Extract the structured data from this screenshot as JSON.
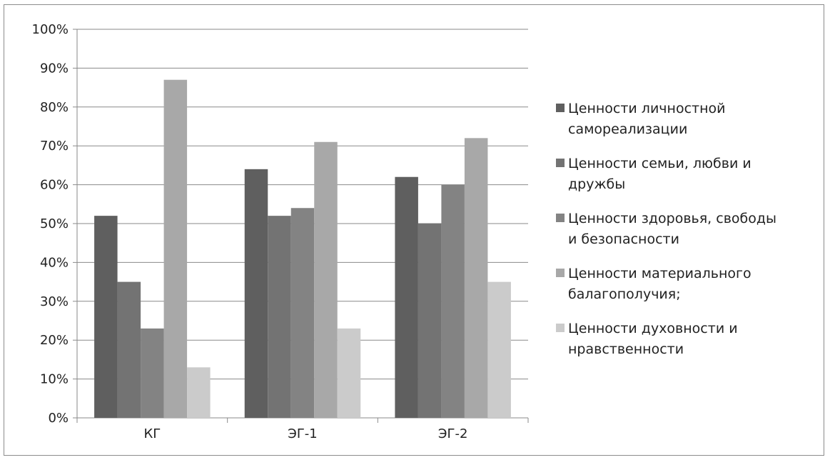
{
  "chart_data": {
    "type": "bar",
    "title": "",
    "xlabel": "",
    "ylabel": "",
    "ylim": [
      0,
      100
    ],
    "y_ticks": [
      "0%",
      "10%",
      "20%",
      "30%",
      "40%",
      "50%",
      "60%",
      "70%",
      "80%",
      "90%",
      "100%"
    ],
    "categories": [
      "КГ",
      "ЭГ-1",
      "ЭГ-2"
    ],
    "grid": true,
    "legend_position": "right",
    "series": [
      {
        "name": "Ценности личностной самореализации",
        "name_lines": [
          "Ценности личностной",
          "самореализации"
        ],
        "color": "#5f5f5f",
        "values": [
          52,
          64,
          62
        ]
      },
      {
        "name": "Ценности семьи, любви и дружбы",
        "name_lines": [
          "Ценности семьи, любви и",
          "дружбы"
        ],
        "color": "#737373",
        "values": [
          35,
          52,
          50
        ]
      },
      {
        "name": "Ценности здоровья, свободы и безопасности",
        "name_lines": [
          "Ценности здоровья, свободы",
          "и безопасности"
        ],
        "color": "#838383",
        "values": [
          23,
          54,
          60
        ]
      },
      {
        "name": "Ценности материального балагополучия;",
        "name_lines": [
          "Ценности материального",
          "балагополучия;"
        ],
        "color": "#a8a8a8",
        "values": [
          87,
          71,
          72
        ]
      },
      {
        "name": "Ценности духовности и нравственности",
        "name_lines": [
          "Ценности духовности и",
          "нравственности"
        ],
        "color": "#cbcbcb",
        "values": [
          13,
          23,
          35
        ]
      }
    ]
  }
}
